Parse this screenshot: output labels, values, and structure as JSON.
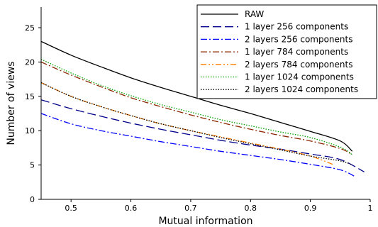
{
  "chart_data": {
    "type": "line",
    "xlabel": "Mutual information",
    "ylabel": "Number of views",
    "xlim": [
      0.45,
      1.0
    ],
    "ylim": [
      0,
      28
    ],
    "x_ticks": [
      0.5,
      0.6,
      0.7,
      0.8,
      0.9,
      1.0
    ],
    "x_tick_labels": [
      "0.5",
      "0.6",
      "0.7",
      "0.8",
      "0.9",
      "1"
    ],
    "y_ticks": [
      0,
      5,
      10,
      15,
      20,
      25
    ],
    "y_tick_labels": [
      "0",
      "5",
      "10",
      "15",
      "20",
      "25"
    ],
    "grid": false,
    "legend_position": "top-right",
    "series": [
      {
        "name": "RAW",
        "color": "#000000",
        "dash": "solid",
        "x": [
          0.45,
          0.5,
          0.55,
          0.6,
          0.65,
          0.7,
          0.75,
          0.8,
          0.85,
          0.9,
          0.95,
          0.97
        ],
        "y": [
          23.0,
          21.0,
          19.3,
          17.7,
          16.3,
          15.0,
          13.7,
          12.5,
          11.2,
          9.9,
          8.5,
          7.0
        ]
      },
      {
        "name": "1 layer 256 components",
        "color": "#00008b",
        "dash": "longdash",
        "x": [
          0.45,
          0.5,
          0.55,
          0.6,
          0.65,
          0.7,
          0.75,
          0.8,
          0.85,
          0.9,
          0.95,
          0.99
        ],
        "y": [
          14.5,
          13.2,
          12.1,
          11.1,
          10.2,
          9.4,
          8.6,
          7.9,
          7.3,
          6.6,
          5.8,
          4.0
        ]
      },
      {
        "name": "2 layers 256 components",
        "color": "#0000ff",
        "dash": "dashdot",
        "x": [
          0.45,
          0.5,
          0.55,
          0.6,
          0.65,
          0.7,
          0.75,
          0.8,
          0.85,
          0.9,
          0.95,
          0.975
        ],
        "y": [
          12.5,
          11.0,
          10.0,
          9.2,
          8.4,
          7.7,
          7.0,
          6.4,
          5.8,
          5.1,
          4.3,
          3.3
        ]
      },
      {
        "name": "1 layer 784 components",
        "color": "#8b2500",
        "dash": "dashdot",
        "x": [
          0.45,
          0.5,
          0.55,
          0.6,
          0.65,
          0.7,
          0.75,
          0.8,
          0.85,
          0.9,
          0.95,
          0.97
        ],
        "y": [
          20.0,
          18.1,
          16.4,
          14.8,
          13.5,
          12.3,
          11.2,
          10.2,
          9.3,
          8.5,
          7.4,
          6.5
        ]
      },
      {
        "name": "2 layers 784 components",
        "color": "#ff7f00",
        "dash": "dashdotdot",
        "x": [
          0.45,
          0.5,
          0.55,
          0.6,
          0.65,
          0.7,
          0.75,
          0.8,
          0.85,
          0.9,
          0.94
        ],
        "y": [
          17.0,
          15.0,
          13.5,
          12.2,
          11.0,
          10.0,
          9.1,
          8.2,
          7.3,
          6.3,
          5.0
        ]
      },
      {
        "name": "1 layer 1024 components",
        "color": "#00a000",
        "dash": "dotted",
        "x": [
          0.45,
          0.5,
          0.55,
          0.6,
          0.65,
          0.7,
          0.75,
          0.8,
          0.85,
          0.9,
          0.95,
          0.97
        ],
        "y": [
          20.4,
          18.4,
          16.6,
          15.1,
          13.8,
          12.7,
          11.6,
          10.7,
          9.8,
          9.0,
          7.6,
          6.5
        ]
      },
      {
        "name": "2 layers 1024 components",
        "color": "#000000",
        "dash": "dotted",
        "x": [
          0.45,
          0.5,
          0.55,
          0.6,
          0.65,
          0.7,
          0.75,
          0.8,
          0.85,
          0.9,
          0.95,
          0.97
        ],
        "y": [
          17.0,
          15.0,
          13.5,
          12.2,
          11.0,
          10.0,
          9.0,
          8.1,
          7.2,
          6.3,
          5.6,
          5.0
        ]
      }
    ]
  }
}
